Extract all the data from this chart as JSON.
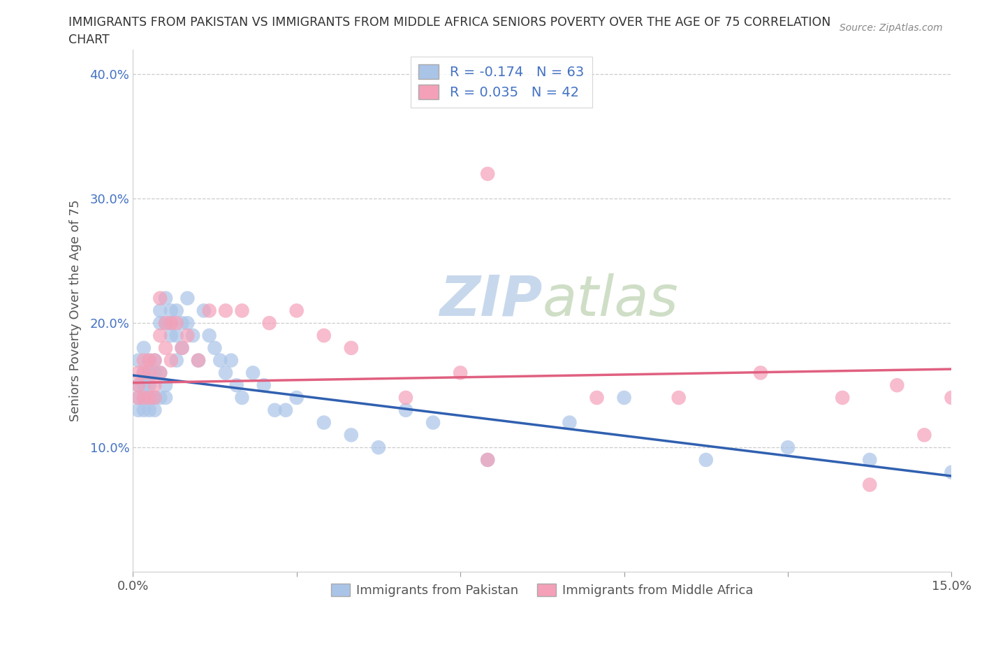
{
  "title_line1": "IMMIGRANTS FROM PAKISTAN VS IMMIGRANTS FROM MIDDLE AFRICA SENIORS POVERTY OVER THE AGE OF 75 CORRELATION",
  "title_line2": "CHART",
  "source": "Source: ZipAtlas.com",
  "ylabel": "Seniors Poverty Over the Age of 75",
  "xlim": [
    0.0,
    0.15
  ],
  "ylim": [
    0.0,
    0.42
  ],
  "pakistan_color": "#aac4e8",
  "middle_africa_color": "#f4a0b8",
  "pakistan_line_color": "#3060b0",
  "middle_africa_line_color": "#e06080",
  "watermark_color": "#c8d8ec",
  "pakistan_R": -0.174,
  "pakistan_N": 63,
  "middle_africa_R": 0.035,
  "middle_africa_N": 42,
  "pk_x": [
    0.001,
    0.001,
    0.001,
    0.001,
    0.002,
    0.002,
    0.002,
    0.002,
    0.002,
    0.003,
    0.003,
    0.003,
    0.003,
    0.003,
    0.004,
    0.004,
    0.004,
    0.004,
    0.005,
    0.005,
    0.005,
    0.005,
    0.006,
    0.006,
    0.006,
    0.006,
    0.007,
    0.007,
    0.007,
    0.008,
    0.008,
    0.008,
    0.009,
    0.009,
    0.01,
    0.01,
    0.011,
    0.012,
    0.013,
    0.014,
    0.015,
    0.016,
    0.017,
    0.018,
    0.019,
    0.02,
    0.022,
    0.024,
    0.026,
    0.028,
    0.03,
    0.035,
    0.04,
    0.045,
    0.05,
    0.055,
    0.065,
    0.08,
    0.09,
    0.105,
    0.12,
    0.135,
    0.15
  ],
  "pk_y": [
    0.17,
    0.15,
    0.14,
    0.13,
    0.18,
    0.16,
    0.15,
    0.14,
    0.13,
    0.17,
    0.16,
    0.15,
    0.14,
    0.13,
    0.17,
    0.16,
    0.14,
    0.13,
    0.21,
    0.2,
    0.16,
    0.14,
    0.22,
    0.2,
    0.15,
    0.14,
    0.21,
    0.2,
    0.19,
    0.21,
    0.19,
    0.17,
    0.2,
    0.18,
    0.22,
    0.2,
    0.19,
    0.17,
    0.21,
    0.19,
    0.18,
    0.17,
    0.16,
    0.17,
    0.15,
    0.14,
    0.16,
    0.15,
    0.13,
    0.13,
    0.14,
    0.12,
    0.11,
    0.1,
    0.13,
    0.12,
    0.09,
    0.12,
    0.14,
    0.09,
    0.1,
    0.09,
    0.08
  ],
  "ma_x": [
    0.001,
    0.001,
    0.001,
    0.002,
    0.002,
    0.002,
    0.003,
    0.003,
    0.003,
    0.004,
    0.004,
    0.004,
    0.005,
    0.005,
    0.005,
    0.006,
    0.006,
    0.007,
    0.007,
    0.008,
    0.009,
    0.01,
    0.012,
    0.014,
    0.017,
    0.02,
    0.025,
    0.03,
    0.035,
    0.04,
    0.05,
    0.06,
    0.065,
    0.085,
    0.1,
    0.115,
    0.13,
    0.14,
    0.15,
    0.145,
    0.135,
    0.065
  ],
  "ma_y": [
    0.16,
    0.15,
    0.14,
    0.17,
    0.16,
    0.14,
    0.17,
    0.16,
    0.14,
    0.17,
    0.15,
    0.14,
    0.22,
    0.19,
    0.16,
    0.2,
    0.18,
    0.2,
    0.17,
    0.2,
    0.18,
    0.19,
    0.17,
    0.21,
    0.21,
    0.21,
    0.2,
    0.21,
    0.19,
    0.18,
    0.14,
    0.16,
    0.32,
    0.14,
    0.14,
    0.16,
    0.14,
    0.15,
    0.14,
    0.11,
    0.07,
    0.09
  ],
  "pk_line_x0": 0.0,
  "pk_line_x1": 0.15,
  "pk_line_y0": 0.158,
  "pk_line_y1": 0.077,
  "ma_line_x0": 0.0,
  "ma_line_x1": 0.15,
  "ma_line_y0": 0.152,
  "ma_line_y1": 0.163
}
